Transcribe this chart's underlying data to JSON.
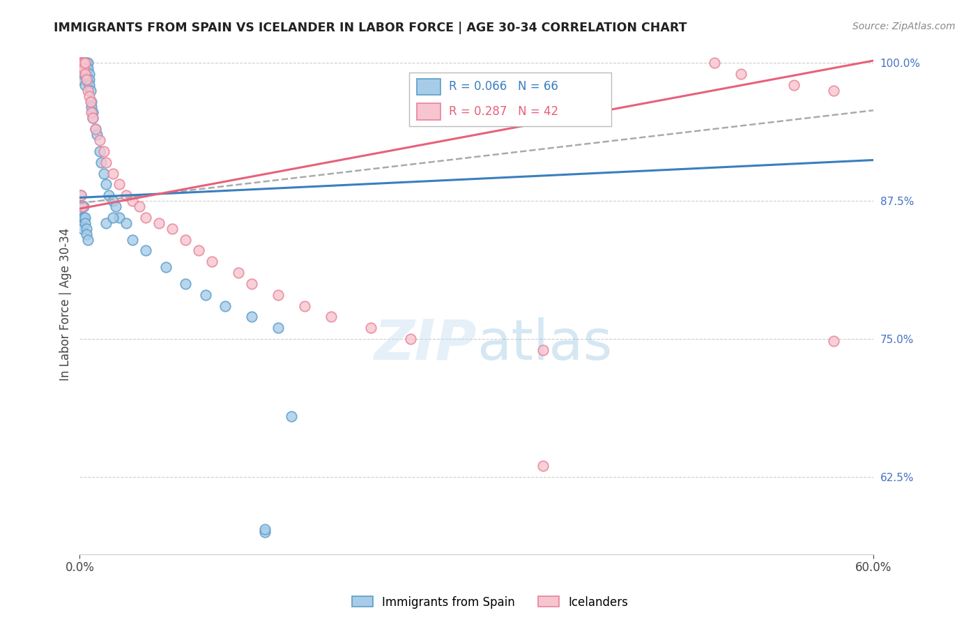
{
  "title": "IMMIGRANTS FROM SPAIN VS ICELANDER IN LABOR FORCE | AGE 30-34 CORRELATION CHART",
  "source": "Source: ZipAtlas.com",
  "ylabel": "In Labor Force | Age 30-34",
  "xlim": [
    0.0,
    0.6
  ],
  "ylim": [
    0.555,
    1.008
  ],
  "xtick_positions": [
    0.0,
    0.6
  ],
  "xtick_labels": [
    "0.0%",
    "60.0%"
  ],
  "yticks_right": [
    1.0,
    0.875,
    0.75,
    0.625
  ],
  "ytick_labels_right": [
    "100.0%",
    "87.5%",
    "75.0%",
    "62.5%"
  ],
  "blue_R": 0.066,
  "blue_N": 66,
  "pink_R": 0.287,
  "pink_N": 42,
  "blue_face": "#a8cce8",
  "blue_edge": "#5b9dc9",
  "pink_face": "#f7c5cf",
  "pink_edge": "#e8829a",
  "blue_line_color": "#3a7ebf",
  "pink_line_color": "#e8607a",
  "dash_line_color": "#aaaaaa",
  "grid_color": "#cccccc",
  "right_tick_color": "#4472c4",
  "title_color": "#222222",
  "source_color": "#888888",
  "ylabel_color": "#444444",
  "watermark_color": "#cde4f0",
  "blue_scatter_x": [
    0.001,
    0.001,
    0.001,
    0.001,
    0.001,
    0.002,
    0.002,
    0.002,
    0.002,
    0.003,
    0.003,
    0.003,
    0.003,
    0.004,
    0.004,
    0.004,
    0.005,
    0.005,
    0.005,
    0.005,
    0.006,
    0.006,
    0.006,
    0.007,
    0.007,
    0.007,
    0.008,
    0.009,
    0.009,
    0.01,
    0.01,
    0.012,
    0.013,
    0.015,
    0.016,
    0.018,
    0.02,
    0.022,
    0.025,
    0.027,
    0.03,
    0.035,
    0.04,
    0.05,
    0.065,
    0.08,
    0.095,
    0.11,
    0.13,
    0.15,
    0.001,
    0.001,
    0.002,
    0.002,
    0.002,
    0.003,
    0.003,
    0.004,
    0.004,
    0.005,
    0.005,
    0.006,
    0.02,
    0.025,
    0.14,
    0.16
  ],
  "blue_scatter_y": [
    1.0,
    1.0,
    1.0,
    0.99,
    0.985,
    1.0,
    1.0,
    1.0,
    0.995,
    1.0,
    1.0,
    0.995,
    0.99,
    1.0,
    1.0,
    0.98,
    1.0,
    0.995,
    0.99,
    0.985,
    1.0,
    0.995,
    0.985,
    0.99,
    0.985,
    0.98,
    0.975,
    0.965,
    0.96,
    0.955,
    0.95,
    0.94,
    0.935,
    0.92,
    0.91,
    0.9,
    0.89,
    0.88,
    0.875,
    0.87,
    0.86,
    0.855,
    0.84,
    0.83,
    0.815,
    0.8,
    0.79,
    0.78,
    0.77,
    0.76,
    0.88,
    0.87,
    0.87,
    0.86,
    0.85,
    0.87,
    0.86,
    0.86,
    0.855,
    0.85,
    0.845,
    0.84,
    0.855,
    0.86,
    0.575,
    0.68
  ],
  "pink_scatter_x": [
    0.001,
    0.001,
    0.002,
    0.003,
    0.003,
    0.004,
    0.004,
    0.005,
    0.006,
    0.007,
    0.008,
    0.009,
    0.01,
    0.012,
    0.015,
    0.018,
    0.02,
    0.025,
    0.03,
    0.035,
    0.04,
    0.045,
    0.05,
    0.06,
    0.07,
    0.08,
    0.09,
    0.1,
    0.12,
    0.13,
    0.15,
    0.17,
    0.19,
    0.22,
    0.25,
    0.35,
    0.48,
    0.5,
    0.54,
    0.57,
    0.001,
    0.002
  ],
  "pink_scatter_y": [
    1.0,
    0.995,
    1.0,
    1.0,
    0.995,
    1.0,
    0.99,
    0.985,
    0.975,
    0.97,
    0.965,
    0.955,
    0.95,
    0.94,
    0.93,
    0.92,
    0.91,
    0.9,
    0.89,
    0.88,
    0.875,
    0.87,
    0.86,
    0.855,
    0.85,
    0.84,
    0.83,
    0.82,
    0.81,
    0.8,
    0.79,
    0.78,
    0.77,
    0.76,
    0.75,
    0.74,
    1.0,
    0.99,
    0.98,
    0.975,
    0.88,
    0.87
  ],
  "blue_line_x0": 0.0,
  "blue_line_x1": 0.6,
  "blue_line_y0": 0.878,
  "blue_line_y1": 0.912,
  "pink_line_x0": 0.0,
  "pink_line_x1": 0.6,
  "pink_line_y0": 0.868,
  "pink_line_y1": 1.002,
  "dash_line_x0": 0.0,
  "dash_line_x1": 0.6,
  "dash_line_y0": 0.873,
  "dash_line_y1": 0.957
}
